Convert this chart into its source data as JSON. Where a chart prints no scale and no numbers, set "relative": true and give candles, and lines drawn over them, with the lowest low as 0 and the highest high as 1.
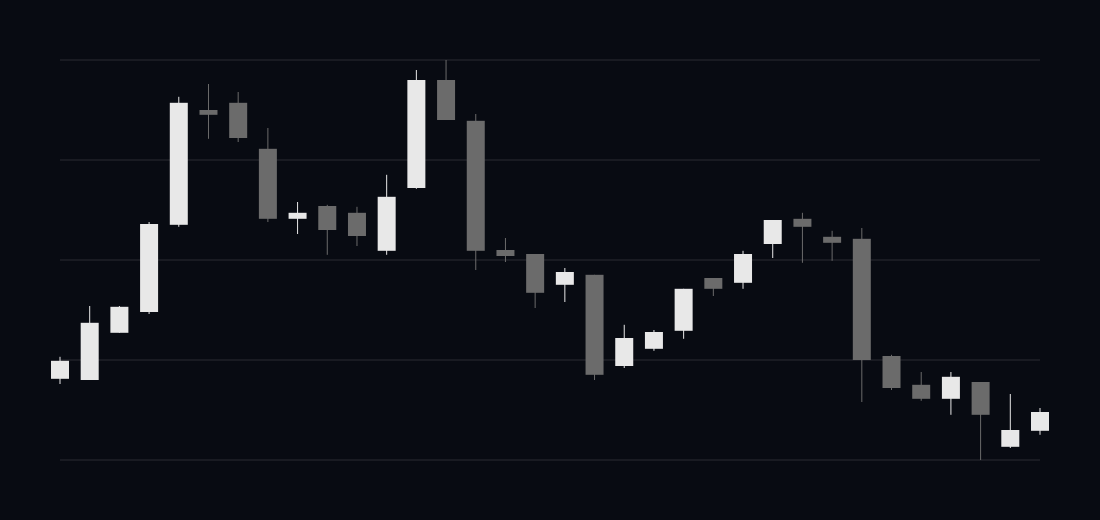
{
  "chart_data": {
    "type": "candlestick",
    "relative": true,
    "grid": "y",
    "categories": [
      null,
      null,
      null,
      null,
      null,
      null,
      null,
      null,
      null,
      null,
      null,
      null,
      null,
      null,
      null,
      null,
      null,
      null,
      null,
      null,
      null,
      null,
      null,
      null,
      null,
      null,
      null,
      null,
      null,
      null,
      null,
      null,
      null,
      null
    ],
    "ohlc": [
      [
        0.203,
        0.258,
        0.19,
        0.248
      ],
      [
        0.2,
        0.385,
        0.2,
        0.343
      ],
      [
        0.318,
        0.385,
        0.318,
        0.383
      ],
      [
        0.37,
        0.595,
        0.365,
        0.59
      ],
      [
        0.588,
        0.908,
        0.583,
        0.893
      ],
      [
        0.875,
        0.94,
        0.803,
        0.863
      ],
      [
        0.893,
        0.92,
        0.795,
        0.805
      ],
      [
        0.778,
        0.83,
        0.595,
        0.603
      ],
      [
        0.603,
        0.645,
        0.565,
        0.618
      ],
      [
        0.635,
        0.638,
        0.513,
        0.575
      ],
      [
        0.618,
        0.633,
        0.535,
        0.56
      ],
      [
        0.523,
        0.713,
        0.513,
        0.658
      ],
      [
        0.68,
        0.975,
        0.678,
        0.95
      ],
      [
        0.95,
        1,
        0.85,
        0.85
      ],
      [
        0.848,
        0.865,
        0.475,
        0.523
      ],
      [
        0.525,
        0.555,
        0.495,
        0.51
      ],
      [
        0.515,
        0.515,
        0.38,
        0.418
      ],
      [
        0.438,
        0.48,
        0.395,
        0.47
      ],
      [
        0.463,
        0.463,
        0.2,
        0.213
      ],
      [
        0.235,
        0.338,
        0.23,
        0.305
      ],
      [
        0.278,
        0.325,
        0.273,
        0.32
      ],
      [
        0.323,
        0.428,
        0.303,
        0.428
      ],
      [
        0.455,
        0.455,
        0.41,
        0.428
      ],
      [
        0.443,
        0.523,
        0.428,
        0.515
      ],
      [
        0.54,
        0.6,
        0.505,
        0.6
      ],
      [
        0.603,
        0.618,
        0.493,
        0.583
      ],
      [
        0.558,
        0.573,
        0.498,
        0.543
      ],
      [
        0.553,
        0.58,
        0.145,
        0.25
      ],
      [
        0.26,
        0.263,
        0.175,
        0.18
      ],
      [
        0.188,
        0.22,
        0.148,
        0.153
      ],
      [
        0.153,
        0.22,
        0.113,
        0.208
      ],
      [
        0.195,
        0.195,
        0,
        0.113
      ],
      [
        0.033,
        0.165,
        0.03,
        0.075
      ],
      [
        0.073,
        0.13,
        0.063,
        0.12
      ]
    ],
    "colors": [
      "#e8e8e8",
      "#e8e8e8",
      "#e8e8e8",
      "#e8e8e8",
      "#e8e8e8",
      "#6b6b6b",
      "#6b6b6b",
      "#6b6b6b",
      "#e8e8e8",
      "#6b6b6b",
      "#6b6b6b",
      "#e8e8e8",
      "#e8e8e8",
      "#6b6b6b",
      "#6b6b6b",
      "#6b6b6b",
      "#6b6b6b",
      "#e8e8e8",
      "#6b6b6b",
      "#e8e8e8",
      "#e8e8e8",
      "#e8e8e8",
      "#6b6b6b",
      "#e8e8e8",
      "#e8e8e8",
      "#6b6b6b",
      "#6b6b6b",
      "#6b6b6b",
      "#6b6b6b",
      "#6b6b6b",
      "#e8e8e8",
      "#6b6b6b",
      "#e8e8e8",
      "#e8e8e8"
    ]
  }
}
